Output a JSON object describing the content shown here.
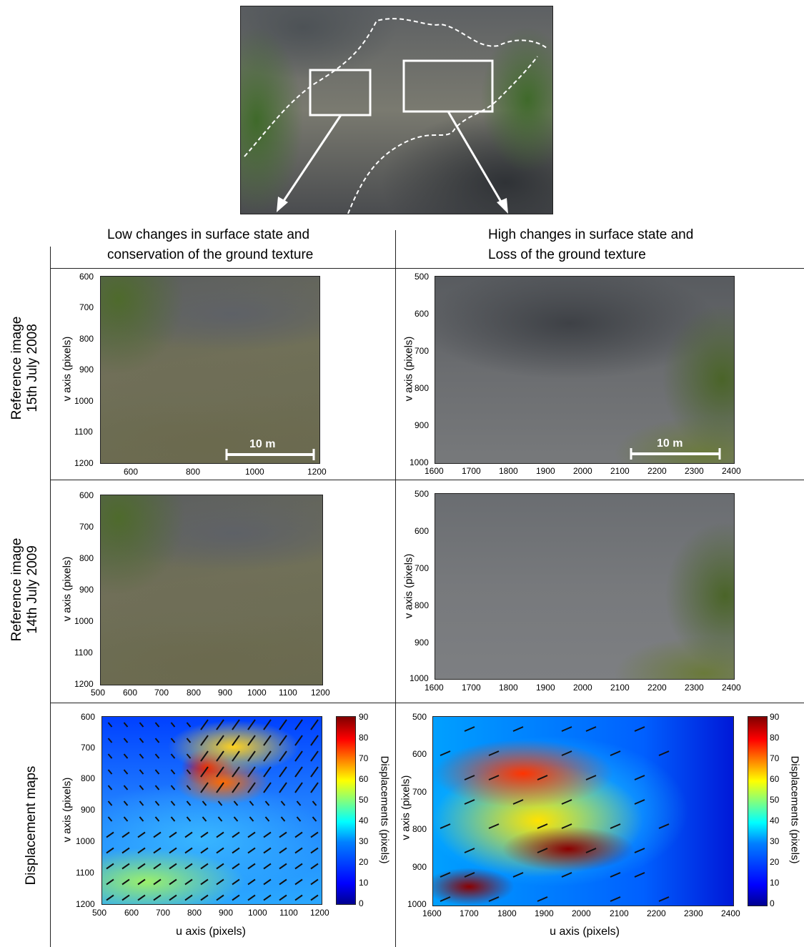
{
  "headers": {
    "left": [
      "Low changes in surface state and",
      "conservation of the ground texture"
    ],
    "right": [
      "High changes in surface state and",
      "Loss of the ground texture"
    ]
  },
  "row_labels": {
    "row1": [
      "Reference image",
      "15th July 2008"
    ],
    "row2": [
      "Reference image",
      "14th July 2009"
    ],
    "row3": [
      "Displacement maps"
    ]
  },
  "axes": {
    "ylabel": "v axis (pixels)",
    "xlabel": "u axis (pixels)",
    "left_row1_x": [
      "600",
      "800",
      "1000",
      "1200"
    ],
    "left_y": [
      "600",
      "700",
      "800",
      "900",
      "1000",
      "1100",
      "1200"
    ],
    "left_x_full": [
      "500",
      "600",
      "700",
      "800",
      "900",
      "1000",
      "1100",
      "1200"
    ],
    "right_y": [
      "500",
      "600",
      "700",
      "800",
      "900",
      "1000"
    ],
    "right_x": [
      "1600",
      "1700",
      "1800",
      "1900",
      "2000",
      "2100",
      "2200",
      "2300",
      "2400"
    ]
  },
  "scale_bar": "10 m",
  "colorbar": {
    "label": "Displacements (pixels)",
    "ticks": [
      "90",
      "80",
      "70",
      "60",
      "50",
      "40",
      "30",
      "20",
      "10",
      "0"
    ]
  },
  "colors": {
    "frame": "#222222",
    "arrow_white": "#ffffff",
    "vector": "#111111"
  }
}
